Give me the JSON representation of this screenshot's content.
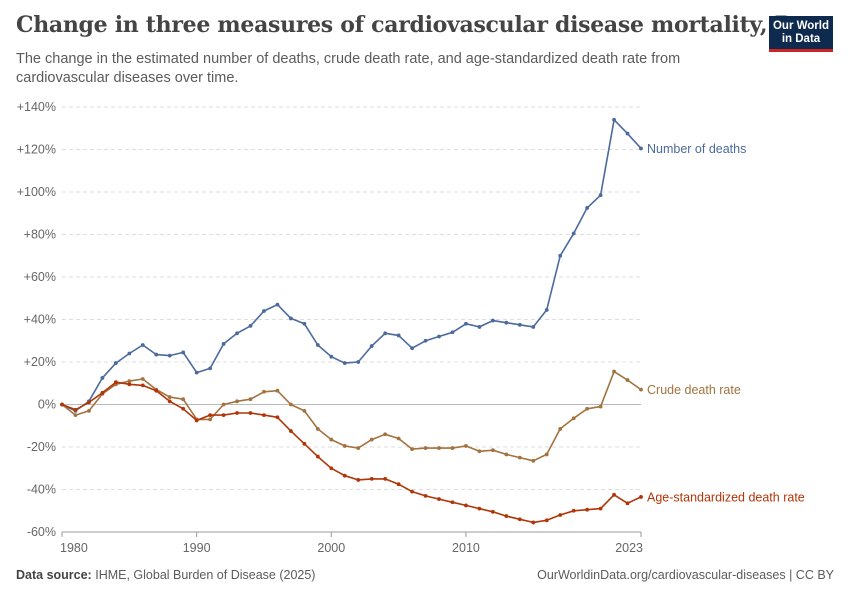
{
  "header": {
    "title": "Change in three measures of cardiovascular disease mortality, Peru",
    "subtitle": "The change in the estimated number of deaths, crude death rate, and age-standardized death rate from cardiovascular diseases over time."
  },
  "logo": {
    "line1": "Our World",
    "line2": "in Data"
  },
  "footer": {
    "source_label": "Data source:",
    "source_text": "IHME, Global Burden of Disease (2025)",
    "url_text": "OurWorldinData.org/cardiovascular-diseases | CC BY"
  },
  "colors": {
    "number_of_deaths": "#4c6a9c",
    "crude_death_rate": "#a2733f",
    "age_standardized": "#b13507",
    "grid": "#dddddd",
    "zero_line": "#bbbbbb",
    "axis_text": "#666666"
  },
  "chart_data": {
    "type": "line",
    "title": "Change in three measures of cardiovascular disease mortality, Peru",
    "xlim": [
      1980,
      2023
    ],
    "ylim": [
      -60,
      140
    ],
    "x_ticks": [
      1980,
      1990,
      2000,
      2010,
      2023
    ],
    "y_ticks": [
      {
        "value": 140,
        "label": "+140%"
      },
      {
        "value": 120,
        "label": "+120%"
      },
      {
        "value": 100,
        "label": "+100%"
      },
      {
        "value": 80,
        "label": "+80%"
      },
      {
        "value": 60,
        "label": "+60%"
      },
      {
        "value": 40,
        "label": "+40%"
      },
      {
        "value": 20,
        "label": "+20%"
      },
      {
        "value": 0,
        "label": "0%"
      },
      {
        "value": -20,
        "label": "-20%"
      },
      {
        "value": -40,
        "label": "-40%"
      },
      {
        "value": -60,
        "label": "-60%"
      }
    ],
    "grid": true,
    "legend": "line-end labels, right",
    "x": [
      1980,
      1981,
      1982,
      1983,
      1984,
      1985,
      1986,
      1987,
      1988,
      1989,
      1990,
      1991,
      1992,
      1993,
      1994,
      1995,
      1996,
      1997,
      1998,
      1999,
      2000,
      2001,
      2002,
      2003,
      2004,
      2005,
      2006,
      2007,
      2008,
      2009,
      2010,
      2011,
      2012,
      2013,
      2014,
      2015,
      2016,
      2017,
      2018,
      2019,
      2020,
      2021,
      2022,
      2023
    ],
    "series": [
      {
        "name": "Number of deaths",
        "color_key": "number_of_deaths",
        "values": [
          0,
          -3,
          1.5,
          12.5,
          19.5,
          24,
          28,
          23.5,
          23,
          24.5,
          15,
          17,
          28.5,
          33.5,
          37,
          44,
          47,
          40.5,
          38,
          28,
          22.5,
          19.5,
          20,
          27.5,
          33.5,
          32.5,
          26.5,
          30,
          32,
          34,
          38,
          36.5,
          39.5,
          38.5,
          37.5,
          36.5,
          44.5,
          70,
          80.5,
          92.5,
          98.5,
          134,
          127.5,
          120.5
        ]
      },
      {
        "name": "Crude death rate",
        "color_key": "crude_death_rate",
        "values": [
          0,
          -5,
          -3,
          5,
          9.5,
          11,
          12,
          7,
          3.5,
          2.5,
          -7,
          -7,
          0,
          1.5,
          2.5,
          6,
          6.5,
          0,
          -3,
          -11.5,
          -16.5,
          -19.5,
          -20.5,
          -16.5,
          -14,
          -16,
          -21,
          -20.5,
          -20.5,
          -20.5,
          -19.5,
          -22,
          -21.5,
          -23.5,
          -25,
          -26.5,
          -23.5,
          -11.5,
          -6.5,
          -2,
          -1,
          15.5,
          11.5,
          7
        ]
      },
      {
        "name": "Age-standardized death rate",
        "color_key": "age_standardized",
        "values": [
          0,
          -2.5,
          1,
          5.5,
          10.5,
          9.5,
          9,
          6.5,
          1.5,
          -2,
          -7.5,
          -5,
          -5,
          -4,
          -4,
          -5,
          -6,
          -12.5,
          -18.5,
          -24.5,
          -30,
          -33.5,
          -35.5,
          -35,
          -35,
          -37.5,
          -41,
          -43,
          -44.5,
          -46,
          -47.5,
          -49,
          -50.5,
          -52.5,
          -54,
          -55.5,
          -54.5,
          -52,
          -50,
          -49.5,
          -49,
          -42.5,
          -46.5,
          -43.5
        ]
      }
    ]
  }
}
